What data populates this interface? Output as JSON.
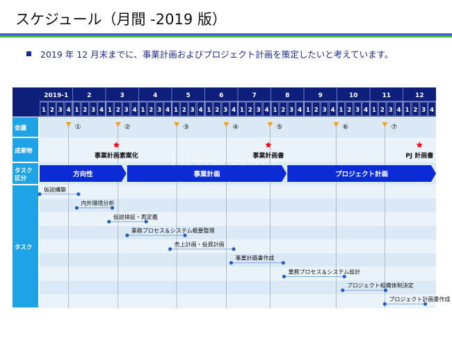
{
  "header": {
    "title": "スケジュール（月間 -2019 版）",
    "intro": "2019 年 12 月末までに、事業計画およびプロジェクト計画を策定したいと考えています。"
  },
  "watermark": "bizocean",
  "colors": {
    "header_bg": "#0d1f7a",
    "label_bg": "#1ea3e6",
    "row_a": "#dbe9f6",
    "row_b": "#ebf3fa",
    "phase_bar": "#0a2bd6",
    "milestone_triangle": "#f0a01e",
    "deliverable_star": "#ff0000",
    "task_dot": "#1f5fc2",
    "task_line": "#7ea9dc"
  },
  "gantt": {
    "months": [
      "2019-1",
      "2",
      "3",
      "4",
      "5",
      "6",
      "7",
      "8",
      "9",
      "10",
      "11",
      "12"
    ],
    "weeks": [
      "1",
      "2",
      "3",
      "4"
    ],
    "row_labels": {
      "meetings": "会議",
      "deliverables": "成果物",
      "phases": "タスク\n区分",
      "tasks": "タスク"
    },
    "meetings": [
      {
        "label": "①",
        "week": 3.5
      },
      {
        "label": "②",
        "week": 9.5
      },
      {
        "label": "③",
        "week": 16.6
      },
      {
        "label": "④",
        "week": 22.6
      },
      {
        "label": "⑤",
        "week": 27.9
      },
      {
        "label": "⑥",
        "week": 35.9
      },
      {
        "label": "⑦",
        "week": 41.8
      }
    ],
    "deliverables": [
      {
        "label": "事業計画素案化",
        "week": 9.3
      },
      {
        "label": "事業計画書",
        "week": 27.7
      },
      {
        "label": "PJ 計画書",
        "week": 46.0
      }
    ],
    "phases": [
      {
        "label": "方向性",
        "start": 0,
        "end": 10.5
      },
      {
        "label": "事業計画",
        "start": 10.6,
        "end": 29.9
      },
      {
        "label": "プロジェクト計画",
        "start": 30.0,
        "end": 48.0
      }
    ],
    "tasks": [
      {
        "label": "仮説構築",
        "start": 0,
        "end": 4.7
      },
      {
        "label": "内外環境分析",
        "start": 4.5,
        "end": 8.8
      },
      {
        "label": "仮説検証・再定義",
        "start": 8.4,
        "end": 12.9
      },
      {
        "label": "業務プロセス＆システム概要整理",
        "start": 10.6,
        "end": 17.6
      },
      {
        "label": "売上計画・投資計画",
        "start": 15.8,
        "end": 23.5
      },
      {
        "label": "事業計画書作成",
        "start": 23.2,
        "end": 29.5
      },
      {
        "label": "業務プロセス＆システム設計",
        "start": 29.6,
        "end": 36.9
      },
      {
        "label": "プロジェクト組織体制決定",
        "start": 36.7,
        "end": 41.9
      },
      {
        "label": "プロジェクト計画書作成",
        "start": 41.8,
        "end": 46.7
      }
    ]
  }
}
